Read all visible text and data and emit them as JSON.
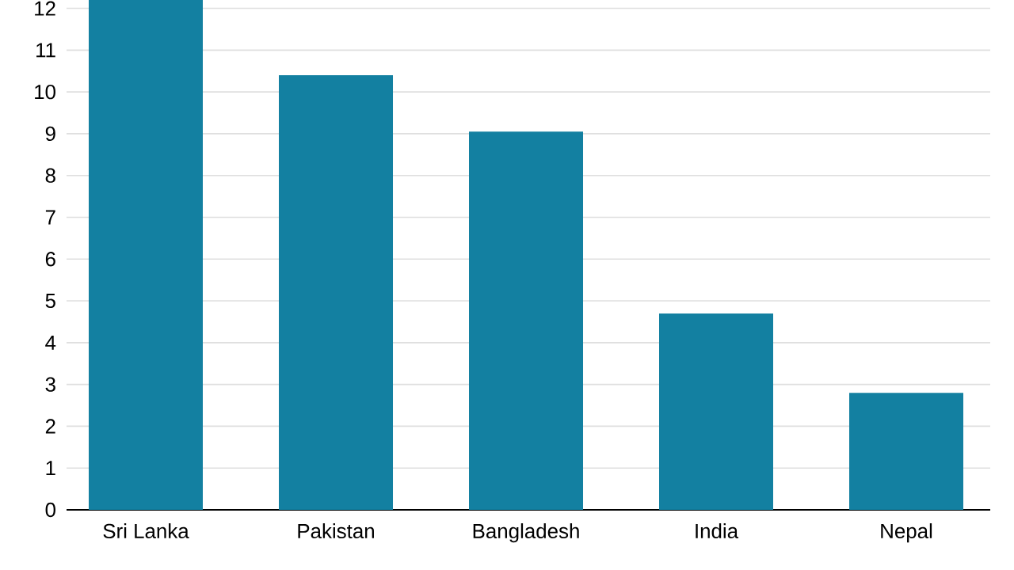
{
  "chart_data": {
    "type": "bar",
    "categories": [
      "Sri Lanka",
      "Pakistan",
      "Bangladesh",
      "India",
      "Nepal"
    ],
    "values": [
      12.2,
      10.4,
      9.05,
      4.7,
      2.8
    ],
    "color": "#1380a1",
    "ylim": [
      0,
      12.2
    ],
    "yticks": [
      0,
      1,
      2,
      3,
      4,
      5,
      6,
      7,
      8,
      9,
      10,
      11,
      12
    ],
    "grid": "y"
  }
}
